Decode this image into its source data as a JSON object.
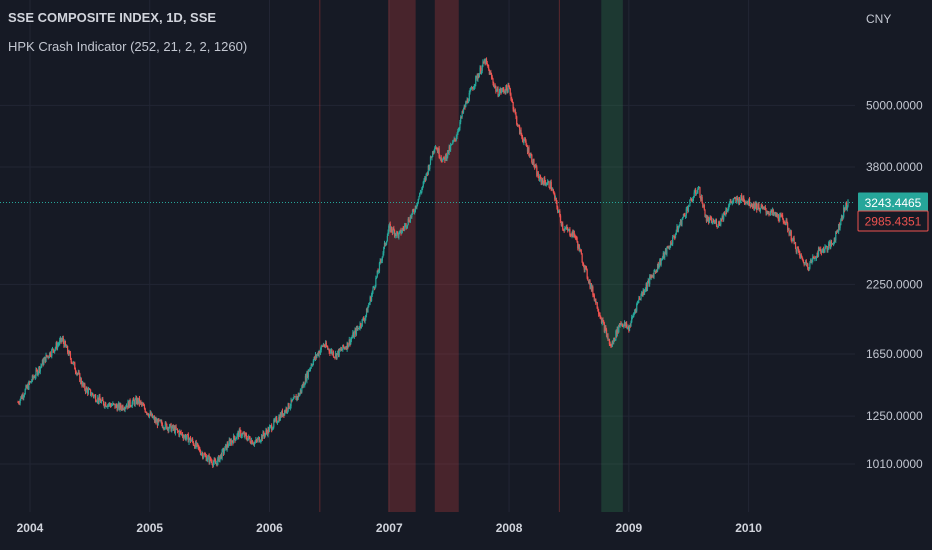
{
  "header": {
    "symbol_title": "SSE COMPOSITE INDEX, 1D, SSE",
    "indicator_title": "HPK Crash Indicator (252, 21, 2, 2, 1260)"
  },
  "price_axis": {
    "currency": "CNY"
  },
  "colors": {
    "background": "#161a25",
    "grid": "#222634",
    "up_candle": "#26a69a",
    "down_candle": "#ef5350",
    "crash_zone": "#b33a3a",
    "recovery_zone": "#2e7d4f",
    "last_price": "#26a69a",
    "indicator_price": "#ef5350"
  },
  "chart_data": {
    "type": "candlestick",
    "scale": "log",
    "x_ticks": [
      "2004",
      "2005",
      "2006",
      "2007",
      "2008",
      "2009",
      "2010"
    ],
    "y_ticks": [
      "5000.0000",
      "3800.0000",
      "2250.0000",
      "1650.0000",
      "1250.0000",
      "1010.0000"
    ],
    "x_range": [
      2003.9,
      2010.83
    ],
    "y_range": [
      860,
      7000
    ],
    "grid": true,
    "series": [
      {
        "values": [
          [
            2003.9,
            1330
          ],
          [
            2004.0,
            1450
          ],
          [
            2004.13,
            1620
          ],
          [
            2004.27,
            1760
          ],
          [
            2004.45,
            1420
          ],
          [
            2004.6,
            1330
          ],
          [
            2004.75,
            1300
          ],
          [
            2004.9,
            1340
          ],
          [
            2005.05,
            1220
          ],
          [
            2005.2,
            1180
          ],
          [
            2005.35,
            1120
          ],
          [
            2005.45,
            1050
          ],
          [
            2005.55,
            1010
          ],
          [
            2005.65,
            1100
          ],
          [
            2005.75,
            1160
          ],
          [
            2005.88,
            1110
          ],
          [
            2006.0,
            1180
          ],
          [
            2006.1,
            1260
          ],
          [
            2006.25,
            1380
          ],
          [
            2006.35,
            1580
          ],
          [
            2006.45,
            1720
          ],
          [
            2006.55,
            1640
          ],
          [
            2006.65,
            1720
          ],
          [
            2006.8,
            1950
          ],
          [
            2006.9,
            2350
          ],
          [
            2007.0,
            2900
          ],
          [
            2007.08,
            2800
          ],
          [
            2007.2,
            3100
          ],
          [
            2007.3,
            3600
          ],
          [
            2007.38,
            4200
          ],
          [
            2007.45,
            3900
          ],
          [
            2007.55,
            4300
          ],
          [
            2007.62,
            4900
          ],
          [
            2007.72,
            5600
          ],
          [
            2007.8,
            6100
          ],
          [
            2007.9,
            5300
          ],
          [
            2008.0,
            5400
          ],
          [
            2008.08,
            4500
          ],
          [
            2008.18,
            4000
          ],
          [
            2008.25,
            3600
          ],
          [
            2008.35,
            3500
          ],
          [
            2008.45,
            2900
          ],
          [
            2008.55,
            2800
          ],
          [
            2008.65,
            2350
          ],
          [
            2008.72,
            2100
          ],
          [
            2008.78,
            1900
          ],
          [
            2008.85,
            1700
          ],
          [
            2008.93,
            1900
          ],
          [
            2009.0,
            1850
          ],
          [
            2009.08,
            2100
          ],
          [
            2009.2,
            2350
          ],
          [
            2009.35,
            2700
          ],
          [
            2009.5,
            3200
          ],
          [
            2009.58,
            3470
          ],
          [
            2009.65,
            3000
          ],
          [
            2009.75,
            2950
          ],
          [
            2009.85,
            3250
          ],
          [
            2009.95,
            3300
          ],
          [
            2010.05,
            3200
          ],
          [
            2010.18,
            3100
          ],
          [
            2010.3,
            3000
          ],
          [
            2010.38,
            2700
          ],
          [
            2010.45,
            2500
          ],
          [
            2010.5,
            2450
          ],
          [
            2010.58,
            2600
          ],
          [
            2010.65,
            2650
          ],
          [
            2010.7,
            2700
          ],
          [
            2010.75,
            2900
          ],
          [
            2010.8,
            3150
          ],
          [
            2010.83,
            3243.4465
          ]
        ]
      }
    ],
    "shaded_zones": [
      {
        "type": "crash",
        "start": 2006.99,
        "end": 2007.22
      },
      {
        "type": "crash",
        "start": 2007.38,
        "end": 2007.58
      },
      {
        "type": "recovery",
        "start": 2008.77,
        "end": 2008.95
      }
    ],
    "marker_lines": [
      2006.42,
      2008.42
    ],
    "price_labels": {
      "last": "3243.4465",
      "indicator": "2985.4351"
    }
  }
}
